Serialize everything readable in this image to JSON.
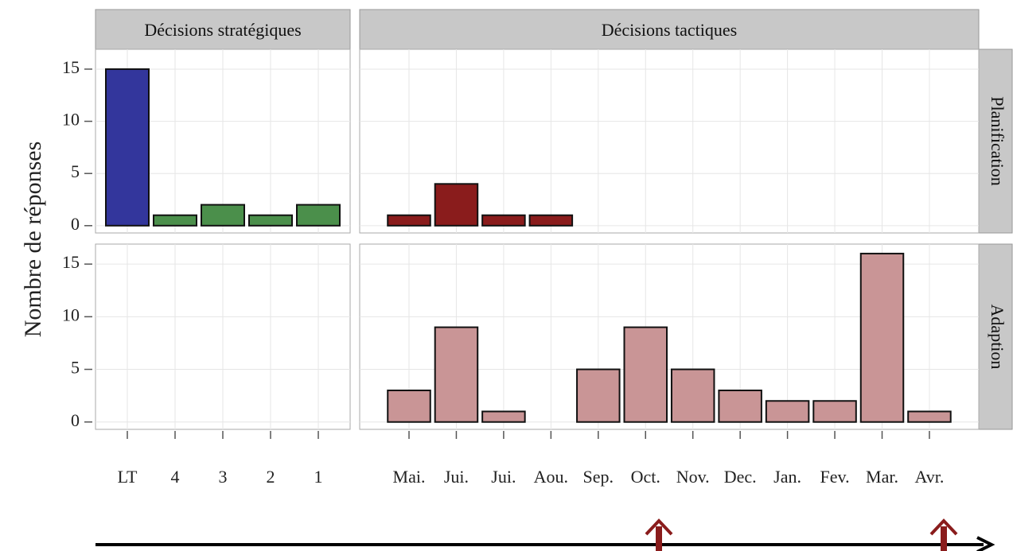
{
  "chart_data": {
    "type": "bar",
    "y_label": "Nombre de réponses",
    "ylim": [
      -0.7,
      16.9
    ],
    "yticks": [
      0,
      5,
      10,
      15
    ],
    "grid": true,
    "columns": [
      {
        "label": "Décisions stratégiques",
        "categories": [
          "LT",
          "4",
          "3",
          "2",
          "1"
        ]
      },
      {
        "label": "Décisions tactiques",
        "categories": [
          "Mai.",
          "Jui.",
          "Jui.",
          "Aou.",
          "Sep.",
          "Oct.",
          "Nov.",
          "Dec.",
          "Jan.",
          "Fev.",
          "Mar.",
          "Avr."
        ]
      }
    ],
    "rows": [
      "Planification",
      "Adaption"
    ],
    "panels": [
      [
        {
          "values": [
            15,
            1,
            2,
            1,
            2
          ],
          "colors": [
            "#33369c",
            "#4b8f4b",
            "#4b8f4b",
            "#4b8f4b",
            "#4b8f4b"
          ]
        },
        {
          "values": [
            1,
            4,
            1,
            1,
            null,
            null,
            null,
            null,
            null,
            null,
            null,
            null
          ],
          "color": "#8a1c1c"
        }
      ],
      [
        {
          "values": [
            null,
            null,
            null,
            null,
            null
          ],
          "color": "#c99596"
        },
        {
          "values": [
            3,
            9,
            1,
            null,
            5,
            9,
            5,
            3,
            2,
            2,
            16,
            1
          ],
          "color": "#c99596"
        }
      ]
    ]
  }
}
